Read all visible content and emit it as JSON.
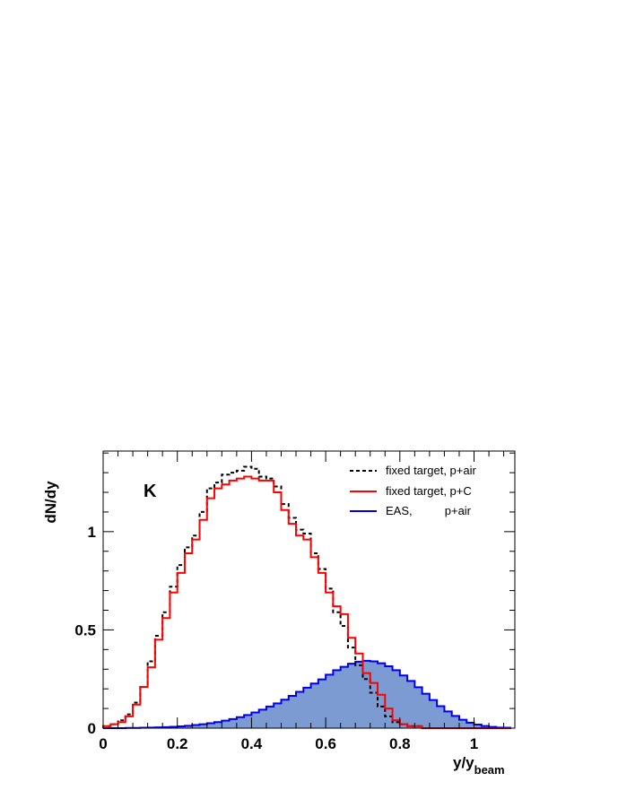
{
  "chart_data": {
    "type": "histogram-step",
    "label": "K",
    "xlabel": "y/y",
    "xlabel_sub": "beam",
    "ylabel": "dN/dy",
    "xlim": [
      0,
      1.11
    ],
    "ylim": [
      0,
      1.41
    ],
    "x_ticks": [
      0,
      0.2,
      0.4,
      0.6,
      0.8,
      1
    ],
    "x_tick_labels": [
      "0",
      "0.2",
      "0.4",
      "0.6",
      "0.8",
      "1"
    ],
    "y_ticks": [
      0,
      0.5,
      1
    ],
    "y_tick_labels": [
      "0",
      "0.5",
      "1"
    ],
    "bin_width": 0.02,
    "x_start": 0,
    "legend": {
      "placement": "top-right",
      "entries": [
        {
          "label": "fixed target, p+air",
          "color": "#000000",
          "style": "dashed"
        },
        {
          "label": "fixed target, p+C",
          "color": "#ff0000",
          "style": "solid"
        },
        {
          "label": "EAS,          p+air",
          "color": "#0000ee",
          "style": "filled",
          "fill": "#7b9bd2"
        }
      ]
    },
    "series": [
      {
        "name": "fixed target, p+air",
        "color": "#000000",
        "style": "dashed",
        "values": [
          0.01,
          0.02,
          0.04,
          0.07,
          0.13,
          0.21,
          0.34,
          0.47,
          0.59,
          0.72,
          0.83,
          0.92,
          0.98,
          1.1,
          1.22,
          1.25,
          1.29,
          1.3,
          1.31,
          1.33,
          1.32,
          1.28,
          1.27,
          1.23,
          1.14,
          1.07,
          1.01,
          0.99,
          0.89,
          0.81,
          0.71,
          0.59,
          0.52,
          0.41,
          0.32,
          0.25,
          0.18,
          0.11,
          0.06,
          0.03,
          0.02,
          0.01,
          0.01,
          0.0,
          0.0,
          0.0,
          0.0,
          0.0,
          0.0,
          0.0,
          0.0,
          0.0,
          0.0,
          0.0,
          0.0
        ]
      },
      {
        "name": "fixed target, p+C",
        "color": "#ff0000",
        "style": "solid",
        "values": [
          0.01,
          0.02,
          0.03,
          0.06,
          0.12,
          0.21,
          0.31,
          0.45,
          0.56,
          0.69,
          0.79,
          0.89,
          0.96,
          1.06,
          1.17,
          1.22,
          1.24,
          1.26,
          1.27,
          1.28,
          1.27,
          1.26,
          1.26,
          1.2,
          1.11,
          1.04,
          0.98,
          0.96,
          0.87,
          0.79,
          0.69,
          0.62,
          0.58,
          0.46,
          0.38,
          0.28,
          0.23,
          0.17,
          0.1,
          0.04,
          0.02,
          0.01,
          0.01,
          0.0,
          0.0,
          0.0,
          0.0,
          0.0,
          0.0,
          0.0,
          0.0,
          0.0,
          0.0,
          0.0,
          0.0
        ]
      },
      {
        "name": "EAS,          p+air",
        "color": "#0000ee",
        "fill": "#7b9bd2",
        "style": "filled",
        "values": [
          0.0,
          0.0,
          0.0,
          0.001,
          0.001,
          0.002,
          0.003,
          0.004,
          0.005,
          0.007,
          0.009,
          0.012,
          0.016,
          0.02,
          0.025,
          0.031,
          0.038,
          0.046,
          0.056,
          0.067,
          0.08,
          0.094,
          0.11,
          0.126,
          0.145,
          0.164,
          0.185,
          0.206,
          0.227,
          0.248,
          0.272,
          0.295,
          0.312,
          0.328,
          0.338,
          0.343,
          0.34,
          0.33,
          0.315,
          0.295,
          0.268,
          0.24,
          0.208,
          0.175,
          0.143,
          0.112,
          0.085,
          0.062,
          0.043,
          0.028,
          0.018,
          0.011,
          0.006,
          0.003,
          0.002
        ]
      }
    ]
  }
}
